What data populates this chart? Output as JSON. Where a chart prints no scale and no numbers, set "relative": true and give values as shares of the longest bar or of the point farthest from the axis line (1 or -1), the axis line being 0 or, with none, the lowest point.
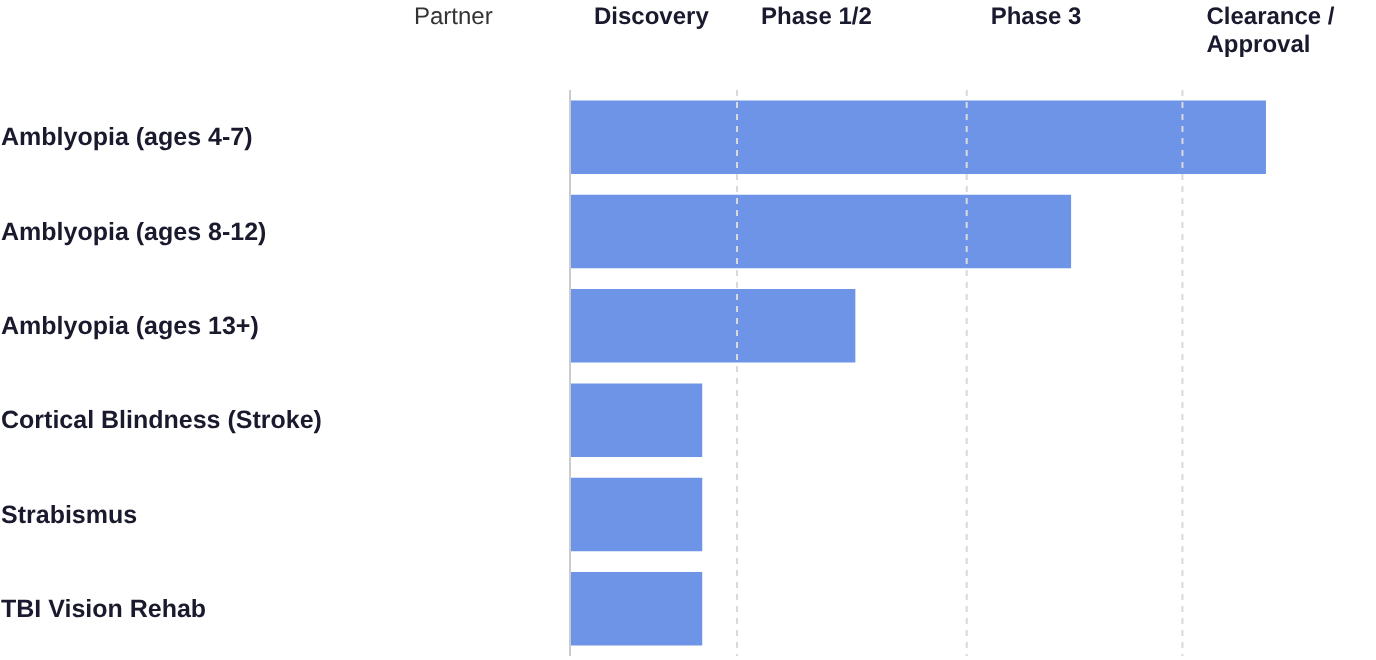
{
  "chart_data": {
    "type": "bar",
    "orientation": "horizontal",
    "relative": true,
    "categories": [
      "Amblyopia (ages 4-7)",
      "Amblyopia (ages 8-12)",
      "Amblyopia (ages 13+)",
      "Cortical Blindness (Stroke)",
      "Strabismus",
      "TBI Vision Rehab"
    ],
    "values": [
      1,
      0.72,
      0.41,
      0.19,
      0.19,
      0.19
    ],
    "color": "#6e94e8",
    "ref_lines": [
      {
        "axis": "x",
        "value": 0.24,
        "line_style": "dashed",
        "color": "#d9d9d9"
      },
      {
        "axis": "x",
        "value": 0.57,
        "line_style": "dashed",
        "color": "#d9d9d9"
      },
      {
        "axis": "x",
        "value": 0.88,
        "line_style": "dashed",
        "color": "#d9d9d9"
      }
    ],
    "annotations": [
      "Partner",
      "Discovery",
      "Phase 1/2",
      "Phase 3",
      "Clearance / Approval"
    ]
  }
}
